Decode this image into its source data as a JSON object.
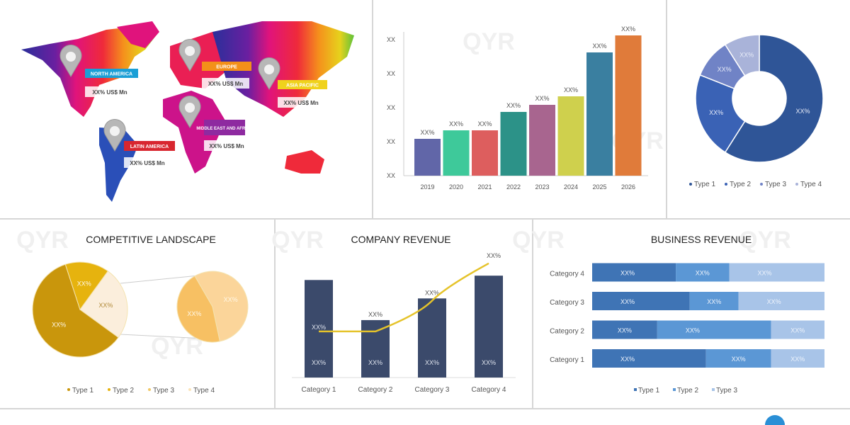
{
  "map_panel": {
    "regions": [
      {
        "name": "NORTH AMERICA",
        "value": "XX% US$ Mn",
        "color": "#1a9fd6"
      },
      {
        "name": "EUROPE",
        "value": "XX% US$ Mn",
        "color": "#f39019"
      },
      {
        "name": "ASIA PACIFIC",
        "value": "XX% US$ Mn",
        "color": "#f0d21c"
      },
      {
        "name": "MIDDLE EAST AND AFRICA",
        "value": "XX% US$ Mn",
        "color": "#8e2aa0"
      },
      {
        "name": "LATIN AMERICA",
        "value": "XX% US$ Mn",
        "color": "#d8262f"
      }
    ]
  },
  "watermark": "QYR",
  "chart_data": [
    {
      "type": "bar",
      "categories": [
        "2019",
        "2020",
        "2021",
        "2022",
        "2023",
        "2024",
        "2025",
        "2026"
      ],
      "values": [
        26,
        32,
        32,
        45,
        50,
        56,
        87,
        99
      ],
      "data_labels": [
        "XX%",
        "XX%",
        "XX%",
        "XX%",
        "XX%",
        "XX%",
        "XX%",
        "XX%"
      ],
      "ytick_labels": [
        "XX",
        "XX",
        "XX",
        "XX",
        "XX"
      ],
      "ylim": [
        0,
        100
      ],
      "colors": [
        "#6166a8",
        "#3ec99a",
        "#dd5e5e",
        "#2c9288",
        "#a8658f",
        "#cfd04d",
        "#3a7fa0",
        "#e07b3a"
      ]
    },
    {
      "type": "pie",
      "donut": true,
      "series": [
        {
          "name": "Type 1",
          "value": 59,
          "label": "XX%",
          "color": "#2f5597"
        },
        {
          "name": "Type 2",
          "value": 22,
          "label": "XX%",
          "color": "#3a62b5"
        },
        {
          "name": "Type 3",
          "value": 10,
          "label": "XX%",
          "color": "#7083c6"
        },
        {
          "name": "Type 4",
          "value": 9,
          "label": "XX%",
          "color": "#a9b3d9"
        }
      ],
      "legend": "bottom"
    },
    {
      "type": "pie",
      "title": "COMPETITIVE LANDSCAPE",
      "series": [
        {
          "name": "Type 1",
          "value": 60,
          "label": "XX%",
          "color": "#c9960c"
        },
        {
          "name": "Type 2",
          "value": 15,
          "label": "XX%",
          "color": "#e6b30e"
        },
        {
          "name": "Type 3",
          "value": 25,
          "label": "XX%",
          "color": "#fbeedc"
        }
      ],
      "sub_pie": [
        {
          "name": "Type 4",
          "value": 55,
          "label": "XX%",
          "color": "#fbd59a"
        },
        {
          "name": "Type 4",
          "value": 45,
          "label": "XX%",
          "color": "#f7c063"
        }
      ],
      "legend_items": [
        {
          "name": "Type 1",
          "color": "#c9960c"
        },
        {
          "name": "Type 2",
          "color": "#e6b30e"
        },
        {
          "name": "Type 3",
          "color": "#f0c866"
        },
        {
          "name": "Type 4",
          "color": "#fbe3b8"
        }
      ],
      "legend": "bottom"
    },
    {
      "type": "bar",
      "title": "COMPANY REVENUE",
      "categories": [
        "Category 1",
        "Category 2",
        "Category 3",
        "Category 4"
      ],
      "values": [
        90,
        53,
        73,
        94
      ],
      "bar_labels_mid": [
        "XX%",
        "XX%",
        "XX%",
        "XX%"
      ],
      "bar_labels_top": [
        "",
        "XX%",
        "XX%",
        ""
      ],
      "line_values": [
        42,
        42,
        70,
        104
      ],
      "line_label": "XX%",
      "ylim": [
        0,
        110
      ],
      "bar_color": "#3b4a6b",
      "line_color": "#e5c32a"
    },
    {
      "type": "bar",
      "orientation": "horizontal",
      "stacked": true,
      "title": "BUSINESS REVENUE",
      "categories": [
        "Category 1",
        "Category 2",
        "Category 3",
        "Category 4"
      ],
      "series": [
        {
          "name": "Type 1",
          "values": [
            49,
            28,
            42,
            36
          ],
          "color": "#3f74b5"
        },
        {
          "name": "Type 2",
          "values": [
            28,
            49,
            21,
            23
          ],
          "color": "#5b97d5"
        },
        {
          "name": "Type 3",
          "values": [
            23,
            23,
            37,
            41
          ],
          "color": "#a8c4e8"
        }
      ],
      "cell_label": "XX%",
      "legend": "bottom"
    }
  ]
}
